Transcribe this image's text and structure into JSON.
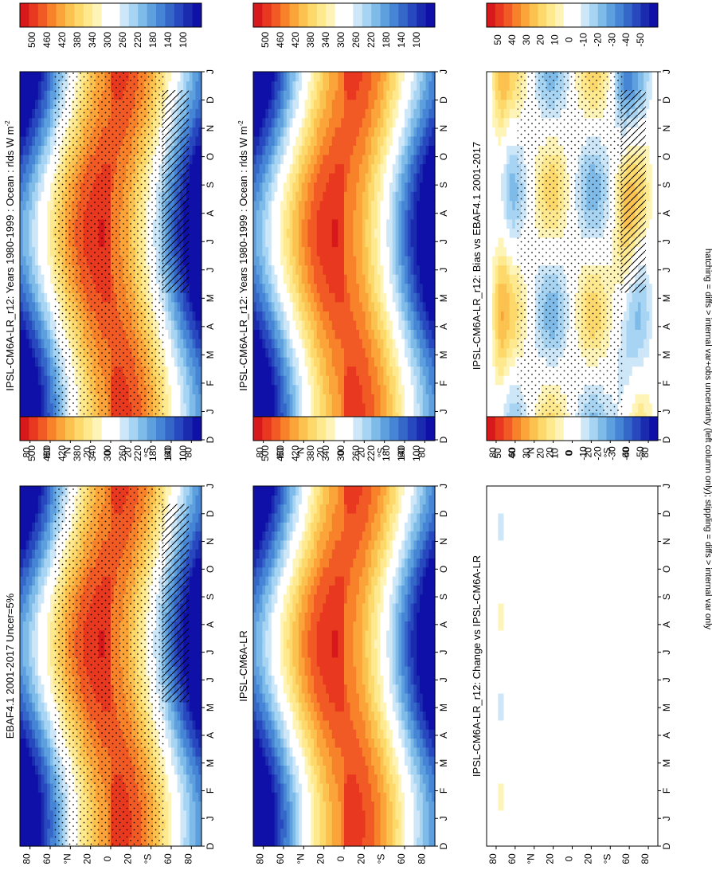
{
  "footer_note": "hatching = diffs > internal var+obs uncertainty (left column only); stippling = diffs > internal var only",
  "chart_data": [
    {
      "type": "heatmap",
      "title": "IPSL-CM6A-LR_r12: Years 1980-1999 : Ocean : rlds W m",
      "title_sup": "-2",
      "x": [
        "D",
        "J",
        "F",
        "M",
        "A",
        "M",
        "J",
        "J",
        "A",
        "S",
        "O",
        "N",
        "D",
        "J"
      ],
      "y_ticks": [
        "80",
        "60",
        "°N",
        "20",
        "0",
        "20",
        "°S",
        "60",
        "80"
      ],
      "ylim": [
        -90,
        90
      ],
      "field": "mean",
      "stipple": "dense",
      "hatch": true,
      "colorbar": {
        "labels": [
          "500",
          "460",
          "420",
          "380",
          "340",
          "300",
          "260",
          "220",
          "180",
          "140",
          "100"
        ],
        "colors": [
          "#d7191c",
          "#e8381f",
          "#f15a24",
          "#f7822a",
          "#fba43a",
          "#fcc24f",
          "#fdd86a",
          "#fee98f",
          "#fff4b8",
          "#ffffff",
          "#ffffff",
          "#cde7f8",
          "#a6d4f2",
          "#7fbbe9",
          "#5e9fde",
          "#4685d5",
          "#3567c9",
          "#2748be",
          "#1a2bb0",
          "#0f10a8"
        ]
      }
    },
    {
      "type": "heatmap",
      "title": "IPSL-CM6A-LR_r12: Years 1980-1999 : Ocean : rlds W m",
      "title_sup": "-2",
      "x": [
        "D",
        "J",
        "F",
        "M",
        "A",
        "M",
        "J",
        "J",
        "A",
        "S",
        "O",
        "N",
        "D",
        "J"
      ],
      "y_ticks": [
        "80",
        "60",
        "°N",
        "20",
        "0",
        "20",
        "°S",
        "60",
        "80"
      ],
      "ylim": [
        -90,
        90
      ],
      "field": "mean",
      "stipple": "sparse",
      "hatch": false,
      "colorbar": {
        "labels": [
          "500",
          "460",
          "420",
          "380",
          "340",
          "300",
          "260",
          "220",
          "180",
          "140",
          "100"
        ],
        "colors": [
          "#d7191c",
          "#e8381f",
          "#f15a24",
          "#f7822a",
          "#fba43a",
          "#fcc24f",
          "#fdd86a",
          "#fee98f",
          "#fff4b8",
          "#ffffff",
          "#ffffff",
          "#cde7f8",
          "#a6d4f2",
          "#7fbbe9",
          "#5e9fde",
          "#4685d5",
          "#3567c9",
          "#2748be",
          "#1a2bb0",
          "#0f10a8"
        ]
      }
    },
    {
      "type": "heatmap",
      "title": "EBAF4.1 2001-2017 Uncer=5%",
      "title_sup": "",
      "x": [
        "D",
        "J",
        "F",
        "M",
        "A",
        "M",
        "J",
        "J",
        "A",
        "S",
        "O",
        "N",
        "D",
        "J"
      ],
      "y_ticks": [
        "80",
        "60",
        "°N",
        "20",
        "0",
        "20",
        "°S",
        "60",
        "80"
      ],
      "ylim": [
        -90,
        90
      ],
      "field": "mean",
      "stipple": "dense",
      "hatch": true,
      "colorbar": {
        "labels": [
          "500",
          "460",
          "420",
          "380",
          "340",
          "300",
          "260",
          "220",
          "180",
          "140",
          "100"
        ],
        "colors": [
          "#d7191c",
          "#e8381f",
          "#f15a24",
          "#f7822a",
          "#fba43a",
          "#fcc24f",
          "#fdd86a",
          "#fee98f",
          "#fff4b8",
          "#ffffff",
          "#ffffff",
          "#cde7f8",
          "#a6d4f2",
          "#7fbbe9",
          "#5e9fde",
          "#4685d5",
          "#3567c9",
          "#2748be",
          "#1a2bb0",
          "#0f10a8"
        ]
      }
    },
    {
      "type": "heatmap",
      "title": "IPSL-CM6A-LR",
      "title_sup": "",
      "x": [
        "D",
        "J",
        "F",
        "M",
        "A",
        "M",
        "J",
        "J",
        "A",
        "S",
        "O",
        "N",
        "D",
        "J"
      ],
      "y_ticks": [
        "80",
        "60",
        "°N",
        "20",
        "0",
        "20",
        "°S",
        "60",
        "80"
      ],
      "ylim": [
        -90,
        90
      ],
      "field": "mean",
      "stipple": "sparse",
      "hatch": false,
      "colorbar": {
        "labels": [
          "500",
          "460",
          "420",
          "380",
          "340",
          "300",
          "260",
          "220",
          "180",
          "140",
          "100"
        ],
        "colors": [
          "#d7191c",
          "#e8381f",
          "#f15a24",
          "#f7822a",
          "#fba43a",
          "#fcc24f",
          "#fdd86a",
          "#fee98f",
          "#fff4b8",
          "#ffffff",
          "#ffffff",
          "#cde7f8",
          "#a6d4f2",
          "#7fbbe9",
          "#5e9fde",
          "#4685d5",
          "#3567c9",
          "#2748be",
          "#1a2bb0",
          "#0f10a8"
        ]
      }
    },
    {
      "type": "heatmap",
      "title": "IPSL-CM6A-LR_r12: Bias vs EBAF4.1 2001-2017",
      "title_sup": "",
      "x": [
        "D",
        "J",
        "F",
        "M",
        "A",
        "M",
        "J",
        "J",
        "A",
        "S",
        "O",
        "N",
        "D",
        "J"
      ],
      "y_ticks": [
        "80",
        "60",
        "°N",
        "20",
        "0",
        "20",
        "°S",
        "60",
        "80"
      ],
      "ylim": [
        -90,
        90
      ],
      "field": "bias",
      "stipple": "dense",
      "hatch": true,
      "colorbar": {
        "labels": [
          "50",
          "40",
          "30",
          "20",
          "10",
          "0",
          "-10",
          "-20",
          "-30",
          "-40",
          "-50"
        ],
        "colors": [
          "#d7191c",
          "#e8381f",
          "#f15a24",
          "#f7822a",
          "#fba43a",
          "#fcc24f",
          "#fdd86a",
          "#fee98f",
          "#fff4b8",
          "#ffffff",
          "#ffffff",
          "#cde7f8",
          "#a6d4f2",
          "#7fbbe9",
          "#5e9fde",
          "#4685d5",
          "#3567c9",
          "#2748be",
          "#1a2bb0",
          "#0f10a8"
        ]
      }
    },
    {
      "type": "heatmap",
      "title": "IPSL-CM6A-LR_r12: Change vs IPSL-CM6A-LR",
      "title_sup": "",
      "x": [
        "D",
        "J",
        "F",
        "M",
        "A",
        "M",
        "J",
        "J",
        "A",
        "S",
        "O",
        "N",
        "D",
        "J"
      ],
      "y_ticks": [
        "80",
        "60",
        "°N",
        "20",
        "0",
        "20",
        "°S",
        "60",
        "80"
      ],
      "ylim": [
        -90,
        90
      ],
      "field": "change",
      "stipple": "sparse",
      "hatch": false,
      "colorbar": {
        "labels": [
          "50",
          "40",
          "30",
          "20",
          "10",
          "0",
          "-10",
          "-20",
          "-30",
          "-40",
          "-50"
        ],
        "colors": [
          "#d7191c",
          "#e8381f",
          "#f15a24",
          "#f7822a",
          "#fba43a",
          "#fcc24f",
          "#fdd86a",
          "#fee98f",
          "#fff4b8",
          "#ffffff",
          "#ffffff",
          "#cde7f8",
          "#a6d4f2",
          "#7fbbe9",
          "#5e9fde",
          "#4685d5",
          "#3567c9",
          "#2748be",
          "#1a2bb0",
          "#0f10a8"
        ]
      }
    }
  ]
}
